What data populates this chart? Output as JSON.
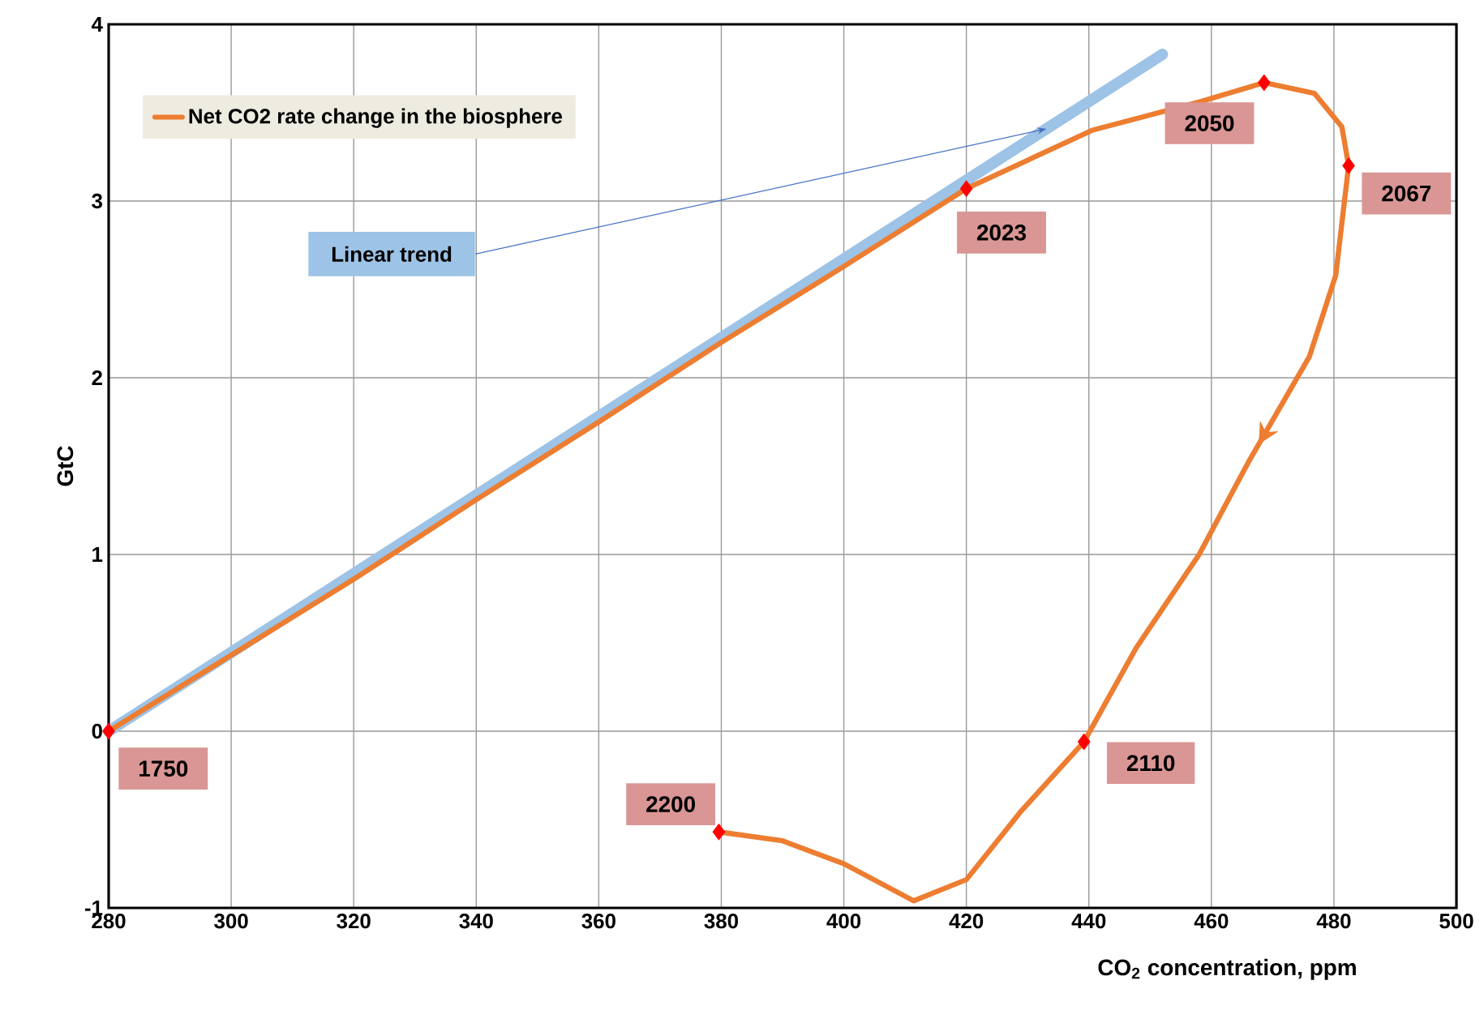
{
  "chart_data": {
    "type": "line",
    "xlabel": "CO$_{2}$ concentration, ppm",
    "ylabel": "GtC",
    "xlim": [
      280,
      500
    ],
    "ylim": [
      -1,
      4
    ],
    "xticks": [
      280,
      300,
      320,
      340,
      360,
      380,
      400,
      420,
      440,
      460,
      480,
      500
    ],
    "yticks": [
      -1,
      0,
      1,
      2,
      3,
      4
    ],
    "grid": true,
    "legend": "top left",
    "series": [
      {
        "name": "Net CO2 rate change in the biosphere",
        "color": "#ed7d31",
        "x": [
          280,
          300,
          320,
          340,
          360,
          380,
          400,
          420,
          440.5,
          458,
          468.6,
          476.8,
          481.3,
          482.4,
          480.3,
          476,
          466,
          458,
          447.7,
          439.2,
          429,
          420,
          411.4,
          400,
          390,
          379.6
        ],
        "values": [
          0,
          0.43,
          0.86,
          1.31,
          1.75,
          2.2,
          2.63,
          3.07,
          3.4,
          3.56,
          3.67,
          3.61,
          3.42,
          3.2,
          2.58,
          2.12,
          1.52,
          1.0,
          0.47,
          -0.06,
          -0.45,
          -0.84,
          -0.96,
          -0.75,
          -0.62,
          -0.57
        ]
      },
      {
        "name": "Linear trend",
        "color": "#9dc3e6",
        "x": [
          280,
          452
        ],
        "values": [
          0,
          3.83
        ]
      },
      {
        "type": "scatter",
        "color": "#ff0000",
        "marker": "diamond",
        "x": [
          280,
          420,
          468.6,
          482.4,
          439.2,
          379.6
        ],
        "values": [
          0,
          3.07,
          3.67,
          3.2,
          -0.06,
          -0.57
        ]
      }
    ],
    "annotations": [
      {
        "text": "1750",
        "x": 280,
        "y": 0
      },
      {
        "text": "2023",
        "x": 420,
        "y": 3.07
      },
      {
        "text": "2050",
        "x": 468.6,
        "y": 3.67
      },
      {
        "text": "2067",
        "x": 482.4,
        "y": 3.2
      },
      {
        "text": "2110",
        "x": 439.2,
        "y": -0.06
      },
      {
        "text": "2200",
        "x": 379.6,
        "y": -0.57
      }
    ]
  }
}
